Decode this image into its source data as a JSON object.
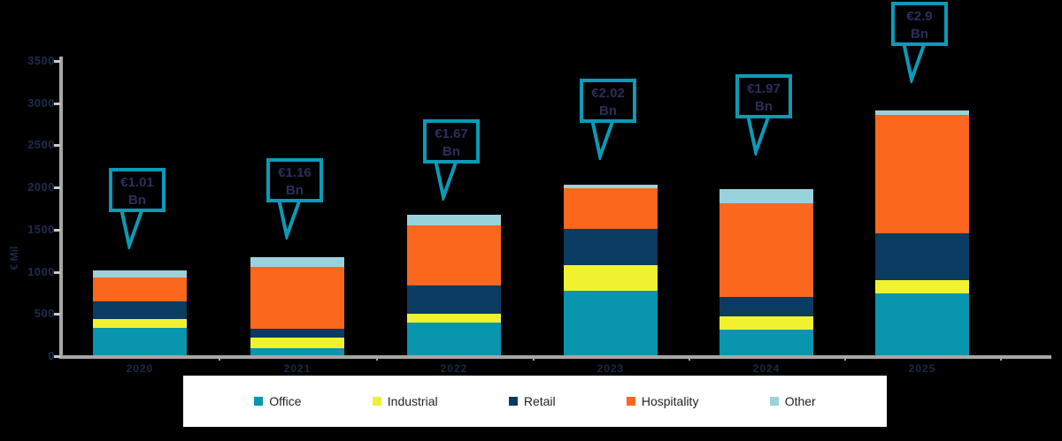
{
  "chart_data": {
    "type": "bar",
    "stacked": true,
    "title": "",
    "ylabel": "€ Mil",
    "xlabel": "",
    "categories": [
      "2020",
      "2021",
      "2022",
      "2023",
      "2024",
      "2025"
    ],
    "series": [
      {
        "name": "Office",
        "color": "#0895AD",
        "values": [
          320,
          85,
          390,
          770,
          305,
          735
        ]
      },
      {
        "name": "Industrial",
        "color": "#F1F22F",
        "values": [
          105,
          120,
          105,
          295,
          155,
          160
        ]
      },
      {
        "name": "Retail",
        "color": "#0A3B61",
        "values": [
          210,
          110,
          330,
          430,
          230,
          550
        ]
      },
      {
        "name": "Hospitality",
        "color": "#FC671E",
        "values": [
          290,
          730,
          715,
          485,
          1110,
          1405
        ]
      },
      {
        "name": "Other",
        "color": "#9AD2DC",
        "values": [
          85,
          115,
          130,
          40,
          170,
          50
        ]
      }
    ],
    "totals": [
      1010,
      1160,
      1670,
      2020,
      1970,
      2900
    ],
    "total_labels": [
      {
        "value": "€1.01",
        "unit": "Bn"
      },
      {
        "value": "€1.16",
        "unit": "Bn"
      },
      {
        "value": "€1.67",
        "unit": "Bn"
      },
      {
        "value": "€2.02",
        "unit": "Bn"
      },
      {
        "value": "€1.97",
        "unit": "Bn"
      },
      {
        "value": "€2.9",
        "unit": "Bn"
      }
    ],
    "y_ticks": [
      0,
      500,
      1000,
      1500,
      2000,
      2500,
      3000,
      3500
    ],
    "ylim": [
      0,
      3500
    ],
    "grid": false,
    "legend_position": "bottom"
  },
  "styles": {
    "background": "#000000",
    "callout_border": "#0C9AB8",
    "callout_text": "#2B2F5C",
    "axis_color": "#A7A7A7",
    "tick_label_color": "#1E2C4D",
    "legend_background": "#FFFFFF",
    "legend_text": "#1F1F1F"
  }
}
